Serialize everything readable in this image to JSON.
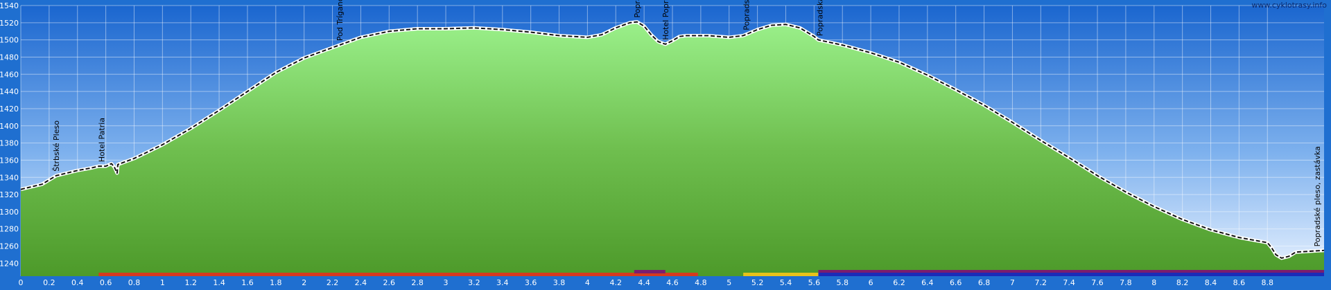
{
  "watermark": "www.cyklotrasy.info",
  "chart_data": {
    "type": "area",
    "xlim": [
      0,
      9.2
    ],
    "ylim": [
      1225,
      1540
    ],
    "x_ticks": [
      0,
      0.2,
      0.4,
      0.6,
      0.8,
      1,
      1.2,
      1.4,
      1.6,
      1.8,
      2,
      2.2,
      2.4,
      2.6,
      2.8,
      3,
      3.2,
      3.4,
      3.6,
      3.8,
      4,
      4.2,
      4.4,
      4.6,
      4.8,
      5,
      5.2,
      5.4,
      5.6,
      5.8,
      6,
      6.2,
      6.4,
      6.6,
      6.8,
      7,
      7.2,
      7.4,
      7.6,
      7.8,
      8,
      8.2,
      8.4,
      8.6,
      8.8
    ],
    "y_ticks": [
      1240,
      1260,
      1280,
      1300,
      1320,
      1340,
      1360,
      1380,
      1400,
      1420,
      1440,
      1460,
      1480,
      1500,
      1520,
      1540
    ],
    "grid": true,
    "profile": [
      [
        0,
        1326
      ],
      [
        0.15,
        1332
      ],
      [
        0.25,
        1342
      ],
      [
        0.4,
        1348
      ],
      [
        0.5,
        1351
      ],
      [
        0.55,
        1353
      ],
      [
        0.6,
        1353
      ],
      [
        0.64,
        1356
      ],
      [
        0.66,
        1352
      ],
      [
        0.68,
        1345
      ],
      [
        0.685,
        1355
      ],
      [
        0.8,
        1362
      ],
      [
        1.0,
        1378
      ],
      [
        1.2,
        1397
      ],
      [
        1.4,
        1418
      ],
      [
        1.6,
        1440
      ],
      [
        1.8,
        1462
      ],
      [
        2.0,
        1479
      ],
      [
        2.2,
        1491
      ],
      [
        2.4,
        1503
      ],
      [
        2.6,
        1510
      ],
      [
        2.8,
        1513
      ],
      [
        3.0,
        1513
      ],
      [
        3.2,
        1514
      ],
      [
        3.4,
        1512
      ],
      [
        3.6,
        1509
      ],
      [
        3.8,
        1505
      ],
      [
        4.0,
        1503
      ],
      [
        4.1,
        1506
      ],
      [
        4.2,
        1514
      ],
      [
        4.3,
        1520
      ],
      [
        4.35,
        1521
      ],
      [
        4.4,
        1516
      ],
      [
        4.45,
        1506
      ],
      [
        4.5,
        1498
      ],
      [
        4.55,
        1495
      ],
      [
        4.6,
        1499
      ],
      [
        4.65,
        1504
      ],
      [
        4.7,
        1505
      ],
      [
        4.85,
        1505
      ],
      [
        5.0,
        1503
      ],
      [
        5.1,
        1505
      ],
      [
        5.2,
        1512
      ],
      [
        5.3,
        1517
      ],
      [
        5.4,
        1518
      ],
      [
        5.5,
        1514
      ],
      [
        5.6,
        1504
      ],
      [
        5.63,
        1500
      ],
      [
        5.8,
        1494
      ],
      [
        6.0,
        1485
      ],
      [
        6.2,
        1474
      ],
      [
        6.4,
        1459
      ],
      [
        6.6,
        1442
      ],
      [
        6.8,
        1424
      ],
      [
        7.0,
        1404
      ],
      [
        7.2,
        1383
      ],
      [
        7.4,
        1363
      ],
      [
        7.6,
        1342
      ],
      [
        7.8,
        1323
      ],
      [
        8.0,
        1306
      ],
      [
        8.2,
        1291
      ],
      [
        8.4,
        1279
      ],
      [
        8.6,
        1270
      ],
      [
        8.8,
        1264
      ],
      [
        8.83,
        1258
      ],
      [
        8.86,
        1250
      ],
      [
        8.9,
        1246
      ],
      [
        8.95,
        1248
      ],
      [
        9.0,
        1253
      ],
      [
        9.1,
        1254
      ],
      [
        9.2,
        1255
      ]
    ],
    "annotations": [
      {
        "x": 0.25,
        "label": "Štrbské Pleso"
      },
      {
        "x": 0.57,
        "label": "Hotel Patria"
      },
      {
        "x": 2.25,
        "label": "Pod Tríganom"
      },
      {
        "x": 4.35,
        "label": "Popradské pleso"
      },
      {
        "x": 4.55,
        "label": "Hotel Popradské pleso"
      },
      {
        "x": 5.12,
        "label": "Popradské pleso"
      },
      {
        "x": 5.64,
        "label": "Popradská Poľana"
      },
      {
        "x": 9.15,
        "label": "Popradské pleso, zastávka"
      }
    ],
    "surface_bars": [
      {
        "x0": 0.55,
        "x1": 4.78,
        "row": 1,
        "color": "#d63a1e"
      },
      {
        "x0": 4.33,
        "x1": 4.55,
        "row": 0,
        "color": "#7a1d6e"
      },
      {
        "x0": 5.1,
        "x1": 5.63,
        "row": 1,
        "color": "#e8c21a"
      },
      {
        "x0": 5.63,
        "x1": 9.2,
        "row": 0,
        "color": "#7a1d6e"
      },
      {
        "x0": 5.63,
        "x1": 9.2,
        "row": 1,
        "color": "#1b2bb8"
      }
    ]
  }
}
